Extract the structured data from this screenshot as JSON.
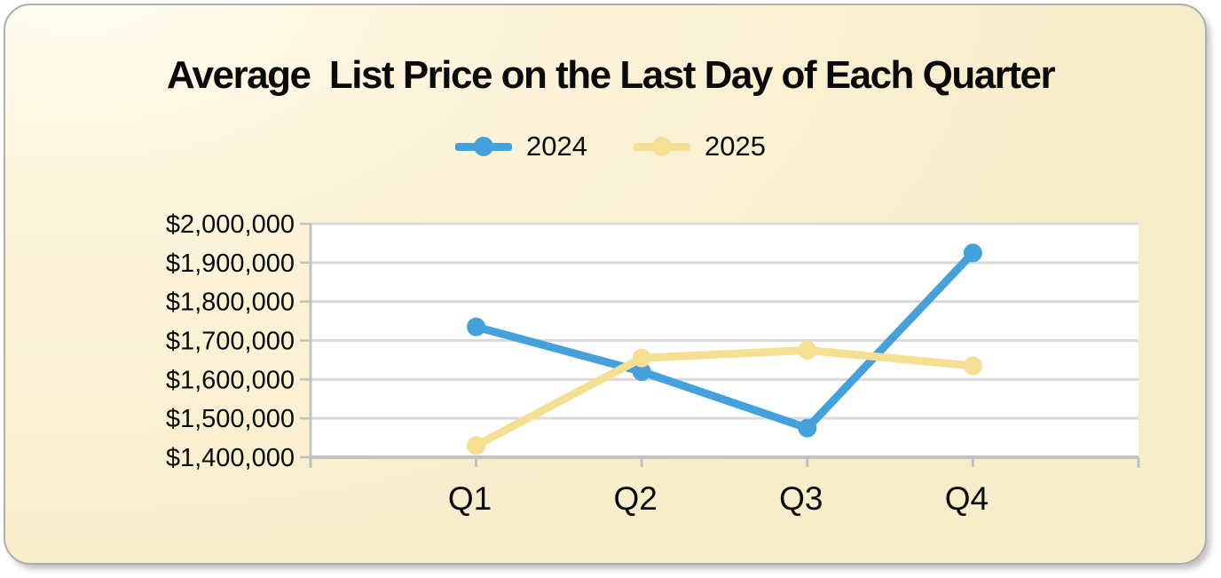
{
  "card": {
    "background_color": "#FBF2D6",
    "border_color": "#AEAEAE"
  },
  "title": "Average  List Price on the Last Day of Each Quarter",
  "legend": {
    "items": [
      {
        "label": "2024",
        "color": "#44A1DB"
      },
      {
        "label": "2025",
        "color": "#F5DF92"
      }
    ]
  },
  "chart_data": {
    "type": "line",
    "title": "Average  List Price on the Last Day of Each Quarter",
    "categories": [
      "Q1",
      "Q2",
      "Q3",
      "Q4"
    ],
    "series": [
      {
        "name": "2024",
        "color": "#44A1DB",
        "values": [
          1735000,
          1620000,
          1475000,
          1925000
        ]
      },
      {
        "name": "2025",
        "color": "#F5DF92",
        "values": [
          1430000,
          1655000,
          1675000,
          1635000
        ]
      }
    ],
    "ylim": [
      1400000,
      2000000
    ],
    "y_tick_step": 100000,
    "y_tick_labels": [
      "$2,000,000",
      "$1,900,000",
      "$1,800,000",
      "$1,700,000",
      "$1,600,000",
      "$1,500,000",
      "$1,400,000"
    ],
    "grid": true,
    "legend_position": "top-center",
    "plot_background": "#FFFFFF",
    "gridline_color": "#DADADA",
    "axis_color": "#C2C2C2",
    "marker": "circle"
  }
}
